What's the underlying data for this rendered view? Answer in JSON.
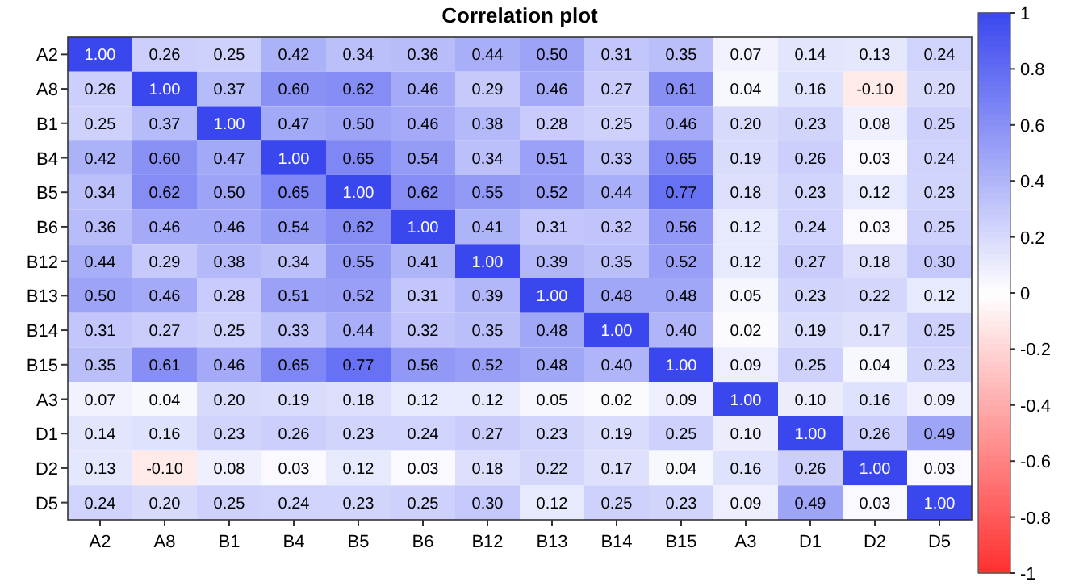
{
  "chart_data": {
    "type": "heatmap",
    "title": "Correlation plot",
    "categories": [
      "A2",
      "A8",
      "B1",
      "B4",
      "B5",
      "B6",
      "B12",
      "B13",
      "B14",
      "B15",
      "A3",
      "D1",
      "D2",
      "D5"
    ],
    "y_categories": [
      "A2",
      "A8",
      "B1",
      "B4",
      "B5",
      "B6",
      "B12",
      "B13",
      "B14",
      "B15",
      "A3",
      "D1",
      "D2",
      "D5"
    ],
    "cells": [
      [
        1.0,
        0.26,
        0.25,
        0.42,
        0.34,
        0.36,
        0.44,
        0.5,
        0.31,
        0.35,
        0.07,
        0.14,
        0.13,
        0.24
      ],
      [
        0.26,
        1.0,
        0.37,
        0.6,
        0.62,
        0.46,
        0.29,
        0.46,
        0.27,
        0.61,
        0.04,
        0.16,
        -0.1,
        0.2
      ],
      [
        0.25,
        0.37,
        1.0,
        0.47,
        0.5,
        0.46,
        0.38,
        0.28,
        0.25,
        0.46,
        0.2,
        0.23,
        0.08,
        0.25
      ],
      [
        0.42,
        0.6,
        0.47,
        1.0,
        0.65,
        0.54,
        0.34,
        0.51,
        0.33,
        0.65,
        0.19,
        0.26,
        0.03,
        0.24
      ],
      [
        0.34,
        0.62,
        0.5,
        0.65,
        1.0,
        0.62,
        0.55,
        0.52,
        0.44,
        0.77,
        0.18,
        0.23,
        0.12,
        0.23
      ],
      [
        0.36,
        0.46,
        0.46,
        0.54,
        0.62,
        1.0,
        0.41,
        0.31,
        0.32,
        0.56,
        0.12,
        0.24,
        0.03,
        0.25
      ],
      [
        0.44,
        0.29,
        0.38,
        0.34,
        0.55,
        0.41,
        1.0,
        0.39,
        0.35,
        0.52,
        0.12,
        0.27,
        0.18,
        0.3
      ],
      [
        0.5,
        0.46,
        0.28,
        0.51,
        0.52,
        0.31,
        0.39,
        1.0,
        0.48,
        0.48,
        0.05,
        0.23,
        0.22,
        0.12
      ],
      [
        0.31,
        0.27,
        0.25,
        0.33,
        0.44,
        0.32,
        0.35,
        0.48,
        1.0,
        0.4,
        0.02,
        0.19,
        0.17,
        0.25
      ],
      [
        0.35,
        0.61,
        0.46,
        0.65,
        0.77,
        0.56,
        0.52,
        0.48,
        0.4,
        1.0,
        0.09,
        0.25,
        0.04,
        0.23
      ],
      [
        0.07,
        0.04,
        0.2,
        0.19,
        0.18,
        0.12,
        0.12,
        0.05,
        0.02,
        0.09,
        1.0,
        0.1,
        0.16,
        0.09
      ],
      [
        0.14,
        0.16,
        0.23,
        0.26,
        0.23,
        0.24,
        0.27,
        0.23,
        0.19,
        0.25,
        0.1,
        1.0,
        0.26,
        0.49
      ],
      [
        0.13,
        -0.1,
        0.08,
        0.03,
        0.12,
        0.03,
        0.18,
        0.22,
        0.17,
        0.04,
        0.16,
        0.26,
        1.0,
        0.03
      ],
      [
        0.24,
        0.2,
        0.25,
        0.24,
        0.23,
        0.25,
        0.3,
        0.12,
        0.25,
        0.23,
        0.09,
        0.49,
        0.03,
        1.0
      ]
    ],
    "cell_labels": [
      [
        "1.00",
        "0.26",
        "0.25",
        "0.42",
        "0.34",
        "0.36",
        "0.44",
        "0.50",
        "0.31",
        "0.35",
        "0.07",
        "0.14",
        "0.13",
        "0.24"
      ],
      [
        "0.26",
        "1.00",
        "0.37",
        "0.60",
        "0.62",
        "0.46",
        "0.29",
        "0.46",
        "0.27",
        "0.61",
        "0.04",
        "0.16",
        "-0.10",
        "0.20"
      ],
      [
        "0.25",
        "0.37",
        "1.00",
        "0.47",
        "0.50",
        "0.46",
        "0.38",
        "0.28",
        "0.25",
        "0.46",
        "0.20",
        "0.23",
        "0.08",
        "0.25"
      ],
      [
        "0.42",
        "0.60",
        "0.47",
        "1.00",
        "0.65",
        "0.54",
        "0.34",
        "0.51",
        "0.33",
        "0.65",
        "0.19",
        "0.26",
        "0.03",
        "0.24"
      ],
      [
        "0.34",
        "0.62",
        "0.50",
        "0.65",
        "1.00",
        "0.62",
        "0.55",
        "0.52",
        "0.44",
        "0.77",
        "0.18",
        "0.23",
        "0.12",
        "0.23"
      ],
      [
        "0.36",
        "0.46",
        "0.46",
        "0.54",
        "0.62",
        "1.00",
        "0.41",
        "0.31",
        "0.32",
        "0.56",
        "0.12",
        "0.24",
        "0.03",
        "0.25"
      ],
      [
        "0.44",
        "0.29",
        "0.38",
        "0.34",
        "0.55",
        "0.41",
        "1.00",
        "0.39",
        "0.35",
        "0.52",
        "0.12",
        "0.27",
        "0.18",
        "0.30"
      ],
      [
        "0.50",
        "0.46",
        "0.28",
        "0.51",
        "0.52",
        "0.31",
        "0.39",
        "1.00",
        "0.48",
        "0.48",
        "0.05",
        "0.23",
        "0.22",
        "0.12"
      ],
      [
        "0.31",
        "0.27",
        "0.25",
        "0.33",
        "0.44",
        "0.32",
        "0.35",
        "0.48",
        "1.00",
        "0.40",
        "0.02",
        "0.19",
        "0.17",
        "0.25"
      ],
      [
        "0.35",
        "0.61",
        "0.46",
        "0.65",
        "0.77",
        "0.56",
        "0.52",
        "0.48",
        "0.40",
        "1.00",
        "0.09",
        "0.25",
        "0.04",
        "0.23"
      ],
      [
        "0.07",
        "0.04",
        "0.20",
        "0.19",
        "0.18",
        "0.12",
        "0.12",
        "0.05",
        "0.02",
        "0.09",
        "1.00",
        "0.10",
        "0.16",
        "0.09"
      ],
      [
        "0.14",
        "0.16",
        "0.23",
        "0.26",
        "0.23",
        "0.24",
        "0.27",
        "0.23",
        "0.19",
        "0.25",
        "0.10",
        "1.00",
        "0.26",
        "0.49"
      ],
      [
        "0.13",
        "-0.10",
        "0.08",
        "0.03",
        "0.12",
        "0.03",
        "0.18",
        "0.22",
        "0.17",
        "0.04",
        "0.16",
        "0.26",
        "1.00",
        "0.03"
      ],
      [
        "0.24",
        "0.20",
        "0.25",
        "0.24",
        "0.23",
        "0.25",
        "0.30",
        "0.12",
        "0.25",
        "0.23",
        "0.09",
        "0.49",
        "0.03",
        "1.00"
      ]
    ],
    "clim": [
      -1,
      1
    ],
    "cticks": [
      1,
      0.8,
      0.6,
      0.4,
      0.2,
      0,
      -0.2,
      -0.4,
      -0.6,
      -0.8,
      -1
    ]
  }
}
